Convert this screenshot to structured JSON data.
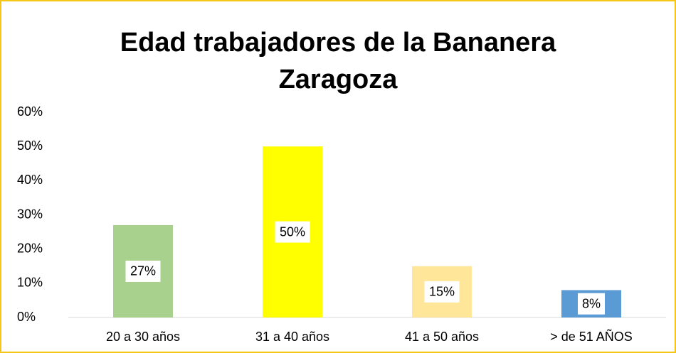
{
  "chart_data": {
    "type": "bar",
    "title": "Edad trabajadores de la Bananera Zaragoza",
    "categories": [
      "20 a 30 años",
      "31 a 40 años",
      "41 a 50 años",
      "> de 51 AÑOS"
    ],
    "values": [
      27,
      50,
      15,
      8
    ],
    "value_labels": [
      "27%",
      "50%",
      "15%",
      "8%"
    ],
    "colors": [
      "#a9d18e",
      "#ffff00",
      "#ffe699",
      "#5b9bd5"
    ],
    "ylim": [
      0,
      60
    ],
    "yticks": [
      {
        "value": 0,
        "label": "0%"
      },
      {
        "value": 10,
        "label": "10%"
      },
      {
        "value": 20,
        "label": "20%"
      },
      {
        "value": 30,
        "label": "30%"
      },
      {
        "value": 40,
        "label": "40%"
      },
      {
        "value": 50,
        "label": "50%"
      },
      {
        "value": 60,
        "label": "60%"
      }
    ],
    "grid": false
  }
}
